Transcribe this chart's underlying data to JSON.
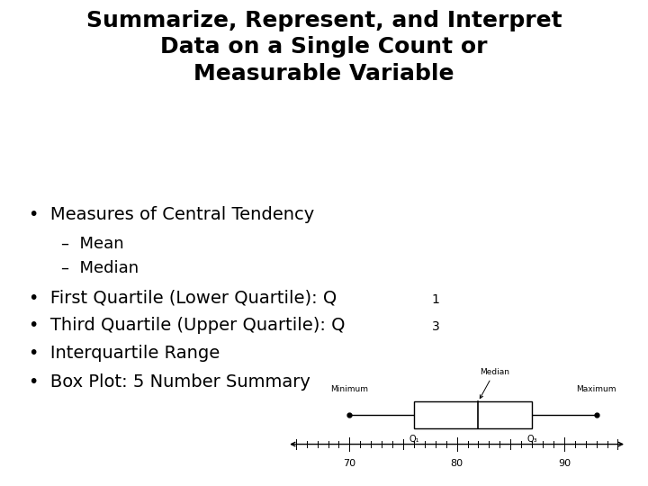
{
  "title_line1": "Summarize, Represent, and Interpret",
  "title_line2": "Data on a Single Count or",
  "title_line3": "Measurable Variable",
  "bg_color": "#ffffff",
  "title_color": "#000000",
  "title_fontsize": 18,
  "bullet_fontsize": 14,
  "sub_bullet_fontsize": 13,
  "bullet1": "Measures of Central Tendency",
  "sub1": "–  Mean",
  "sub2": "–  Median",
  "bullet2_pre": "First Quartile (Lower Quartile): Q",
  "bullet2_sub": "1",
  "bullet3_pre": "Third Quartile (Upper Quartile): Q",
  "bullet3_sub": "3",
  "bullet4": "Interquartile Range",
  "bullet5": "Box Plot: 5 Number Summary",
  "boxplot": {
    "xmin": 64,
    "xmax": 96,
    "minimum": 70,
    "q1": 76,
    "median": 82,
    "q3": 87,
    "maximum": 93,
    "axis_ticks": [
      70,
      80,
      90
    ]
  }
}
